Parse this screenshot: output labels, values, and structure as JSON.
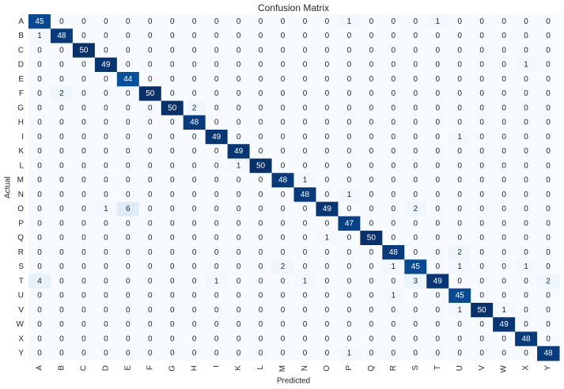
{
  "chart_data": {
    "type": "heatmap",
    "title": "Confusion Matrix",
    "x_label": "Predicted",
    "y_label": "Actual",
    "x_categories": [
      "A",
      "B",
      "C",
      "D",
      "E",
      "F",
      "G",
      "H",
      "I",
      "K",
      "L",
      "M",
      "N",
      "O",
      "P",
      "Q",
      "R",
      "S",
      "T",
      "U",
      "V",
      "W",
      "X",
      "Y"
    ],
    "y_categories": [
      "A",
      "B",
      "C",
      "D",
      "E",
      "F",
      "G",
      "H",
      "I",
      "K",
      "L",
      "M",
      "N",
      "O",
      "P",
      "Q",
      "R",
      "S",
      "T",
      "U",
      "V",
      "W",
      "X",
      "Y"
    ],
    "colors": [
      "#f7fbff",
      "#deebf7",
      "#c6dbef",
      "#9ecae1",
      "#6baed6",
      "#4292c6",
      "#2171b5",
      "#08519c",
      "#08306b"
    ],
    "values": [
      [
        45,
        0,
        0,
        0,
        0,
        0,
        0,
        0,
        0,
        0,
        0,
        0,
        0,
        0,
        1,
        0,
        0,
        0,
        1,
        0,
        0,
        0,
        0,
        0
      ],
      [
        1,
        48,
        0,
        0,
        0,
        0,
        0,
        0,
        0,
        0,
        0,
        0,
        0,
        0,
        0,
        0,
        0,
        0,
        0,
        0,
        0,
        0,
        0,
        0
      ],
      [
        0,
        0,
        50,
        0,
        0,
        0,
        0,
        0,
        0,
        0,
        0,
        0,
        0,
        0,
        0,
        0,
        0,
        0,
        0,
        0,
        0,
        0,
        0,
        0
      ],
      [
        0,
        0,
        0,
        49,
        0,
        0,
        0,
        0,
        0,
        0,
        0,
        0,
        0,
        0,
        0,
        0,
        0,
        0,
        0,
        0,
        0,
        0,
        1,
        0
      ],
      [
        0,
        0,
        0,
        0,
        44,
        0,
        0,
        0,
        0,
        0,
        0,
        0,
        0,
        0,
        0,
        0,
        0,
        0,
        0,
        0,
        0,
        0,
        0,
        0
      ],
      [
        0,
        2,
        0,
        0,
        0,
        50,
        0,
        0,
        0,
        0,
        0,
        0,
        0,
        0,
        0,
        0,
        0,
        0,
        0,
        0,
        0,
        0,
        0,
        0
      ],
      [
        0,
        0,
        0,
        0,
        0,
        0,
        50,
        2,
        0,
        0,
        0,
        0,
        0,
        0,
        0,
        0,
        0,
        0,
        0,
        0,
        0,
        0,
        0,
        0
      ],
      [
        0,
        0,
        0,
        0,
        0,
        0,
        0,
        48,
        0,
        0,
        0,
        0,
        0,
        0,
        0,
        0,
        0,
        0,
        0,
        0,
        0,
        0,
        0,
        0
      ],
      [
        0,
        0,
        0,
        0,
        0,
        0,
        0,
        0,
        49,
        0,
        0,
        0,
        0,
        0,
        0,
        0,
        0,
        0,
        0,
        1,
        0,
        0,
        0,
        0
      ],
      [
        0,
        0,
        0,
        0,
        0,
        0,
        0,
        0,
        0,
        49,
        0,
        0,
        0,
        0,
        0,
        0,
        0,
        0,
        0,
        0,
        0,
        0,
        0,
        0
      ],
      [
        0,
        0,
        0,
        0,
        0,
        0,
        0,
        0,
        0,
        1,
        50,
        0,
        0,
        0,
        0,
        0,
        0,
        0,
        0,
        0,
        0,
        0,
        0,
        0
      ],
      [
        0,
        0,
        0,
        0,
        0,
        0,
        0,
        0,
        0,
        0,
        0,
        48,
        1,
        0,
        0,
        0,
        0,
        0,
        0,
        0,
        0,
        0,
        0,
        0
      ],
      [
        0,
        0,
        0,
        0,
        0,
        0,
        0,
        0,
        0,
        0,
        0,
        0,
        48,
        0,
        1,
        0,
        0,
        0,
        0,
        0,
        0,
        0,
        0,
        0
      ],
      [
        0,
        0,
        0,
        1,
        6,
        0,
        0,
        0,
        0,
        0,
        0,
        0,
        0,
        49,
        0,
        0,
        0,
        2,
        0,
        0,
        0,
        0,
        0,
        0
      ],
      [
        0,
        0,
        0,
        0,
        0,
        0,
        0,
        0,
        0,
        0,
        0,
        0,
        0,
        0,
        47,
        0,
        0,
        0,
        0,
        0,
        0,
        0,
        0,
        0
      ],
      [
        0,
        0,
        0,
        0,
        0,
        0,
        0,
        0,
        0,
        0,
        0,
        0,
        0,
        1,
        0,
        50,
        0,
        0,
        0,
        0,
        0,
        0,
        0,
        0
      ],
      [
        0,
        0,
        0,
        0,
        0,
        0,
        0,
        0,
        0,
        0,
        0,
        0,
        0,
        0,
        0,
        0,
        48,
        0,
        0,
        2,
        0,
        0,
        0,
        0
      ],
      [
        0,
        0,
        0,
        0,
        0,
        0,
        0,
        0,
        0,
        0,
        0,
        2,
        0,
        0,
        0,
        0,
        1,
        45,
        0,
        1,
        0,
        0,
        1,
        0
      ],
      [
        4,
        0,
        0,
        0,
        0,
        0,
        0,
        0,
        1,
        0,
        0,
        0,
        1,
        0,
        0,
        0,
        0,
        3,
        49,
        0,
        0,
        0,
        0,
        2
      ],
      [
        0,
        0,
        0,
        0,
        0,
        0,
        0,
        0,
        0,
        0,
        0,
        0,
        0,
        0,
        0,
        0,
        1,
        0,
        0,
        45,
        0,
        0,
        0,
        0
      ],
      [
        0,
        0,
        0,
        0,
        0,
        0,
        0,
        0,
        0,
        0,
        0,
        0,
        0,
        0,
        0,
        0,
        0,
        0,
        0,
        1,
        50,
        1,
        0,
        0
      ],
      [
        0,
        0,
        0,
        0,
        0,
        0,
        0,
        0,
        0,
        0,
        0,
        0,
        0,
        0,
        0,
        0,
        0,
        0,
        0,
        0,
        0,
        49,
        0,
        0
      ],
      [
        0,
        0,
        0,
        0,
        0,
        0,
        0,
        0,
        0,
        0,
        0,
        0,
        0,
        0,
        0,
        0,
        0,
        0,
        0,
        0,
        0,
        0,
        48,
        0
      ],
      [
        0,
        0,
        0,
        0,
        0,
        0,
        0,
        0,
        0,
        0,
        0,
        0,
        0,
        0,
        1,
        0,
        0,
        0,
        0,
        0,
        0,
        0,
        0,
        48
      ]
    ]
  }
}
